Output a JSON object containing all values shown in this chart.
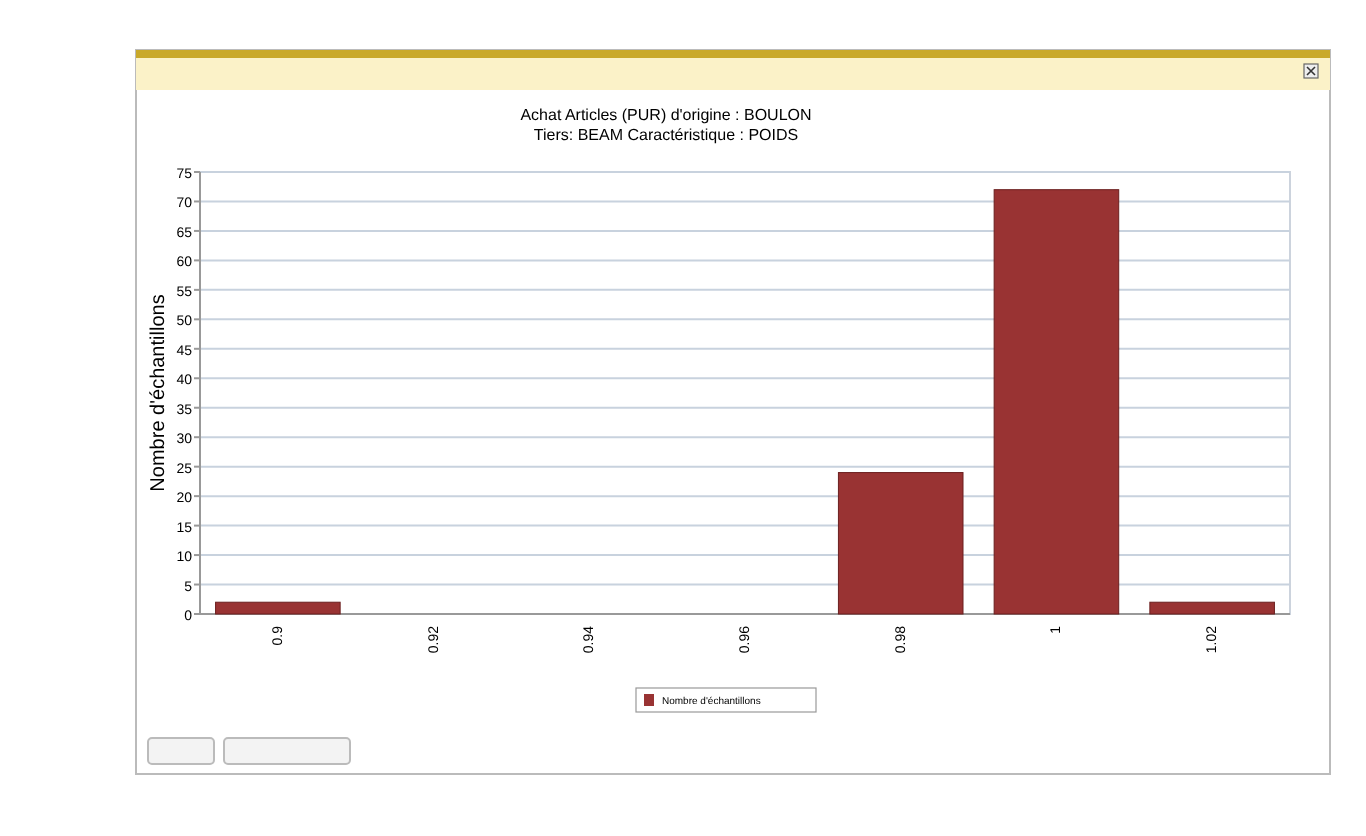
{
  "chart_data": {
    "type": "bar",
    "title": "Achat  Articles (PUR) d'origine : BOULON",
    "subtitle": "Tiers: BEAM    Caractéristique : POIDS",
    "ylabel": "Nombre d'échantillons",
    "categories": [
      "0.9",
      "0.92",
      "0.94",
      "0.96",
      "0.98",
      "1",
      "1.02"
    ],
    "series": [
      {
        "name": "Nombre d'échantillons",
        "color": "#993333",
        "values": [
          2,
          0,
          0,
          0,
          24,
          72,
          2
        ]
      }
    ],
    "ylim": [
      0,
      75
    ],
    "yticks": [
      0,
      5,
      10,
      15,
      20,
      25,
      30,
      35,
      40,
      45,
      50,
      55,
      60,
      65,
      70,
      75
    ],
    "grid": "y",
    "legend": "bottom"
  }
}
